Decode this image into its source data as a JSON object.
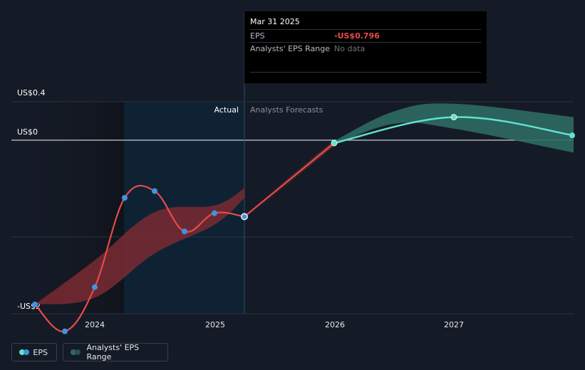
{
  "chart_data": {
    "type": "line",
    "y_axis_labels": [
      "US$0.4",
      "US$0",
      "-US$2"
    ],
    "ylim": [
      -2.0,
      0.4
    ],
    "x_ticks": [
      "2024",
      "2025",
      "2026",
      "2027"
    ],
    "section_labels": {
      "actual": "Actual",
      "forecast": "Analysts Forecasts"
    },
    "series": [
      {
        "name": "EPS",
        "kind": "actual",
        "points": [
          {
            "x": 2023.5,
            "y": -1.71
          },
          {
            "x": 2023.75,
            "y": -1.99
          },
          {
            "x": 2024.0,
            "y": -1.53
          },
          {
            "x": 2024.25,
            "y": -0.6
          },
          {
            "x": 2024.5,
            "y": -0.53
          },
          {
            "x": 2024.75,
            "y": -0.95
          },
          {
            "x": 2025.0,
            "y": -0.76
          },
          {
            "x": 2025.25,
            "y": -0.796
          }
        ]
      },
      {
        "name": "EPS",
        "kind": "forecast",
        "points": [
          {
            "x": 2025.25,
            "y": -0.796
          },
          {
            "x": 2026.0,
            "y": -0.03
          },
          {
            "x": 2027.0,
            "y": 0.24
          },
          {
            "x": 2028.0,
            "y": 0.05
          }
        ]
      }
    ],
    "actual_range": {
      "upper": [
        {
          "x": 2023.5,
          "y": -1.71
        },
        {
          "x": 2024.0,
          "y": -1.25
        },
        {
          "x": 2024.5,
          "y": -0.75
        },
        {
          "x": 2025.0,
          "y": -0.68
        },
        {
          "x": 2025.25,
          "y": -0.5
        }
      ],
      "lower": [
        {
          "x": 2023.5,
          "y": -1.71
        },
        {
          "x": 2024.0,
          "y": -1.64
        },
        {
          "x": 2024.5,
          "y": -1.18
        },
        {
          "x": 2025.0,
          "y": -0.88
        },
        {
          "x": 2025.25,
          "y": -0.6
        }
      ]
    },
    "forecast_range": {
      "upper": [
        {
          "x": 2026.0,
          "y": -0.01
        },
        {
          "x": 2026.5,
          "y": 0.3
        },
        {
          "x": 2027.0,
          "y": 0.38
        },
        {
          "x": 2028.0,
          "y": 0.24
        }
      ],
      "lower": [
        {
          "x": 2026.0,
          "y": -0.05
        },
        {
          "x": 2026.5,
          "y": 0.17
        },
        {
          "x": 2027.0,
          "y": 0.12
        },
        {
          "x": 2028.0,
          "y": -0.13
        }
      ]
    },
    "highlighted_x": 2025.25,
    "colors": {
      "actual_line": "#e84a4a",
      "forecast_line": "#5ee3cf",
      "actual_range": "#7a2a33",
      "forecast_range": "#2e6a63",
      "point": "#3d95e0"
    }
  },
  "tooltip": {
    "date": "Mar 31 2025",
    "eps_label": "EPS",
    "eps_value": "-US$0.796",
    "range_label": "Analysts' EPS Range",
    "range_value": "No data"
  },
  "legend": {
    "eps": "EPS",
    "range": "Analysts' EPS Range"
  }
}
